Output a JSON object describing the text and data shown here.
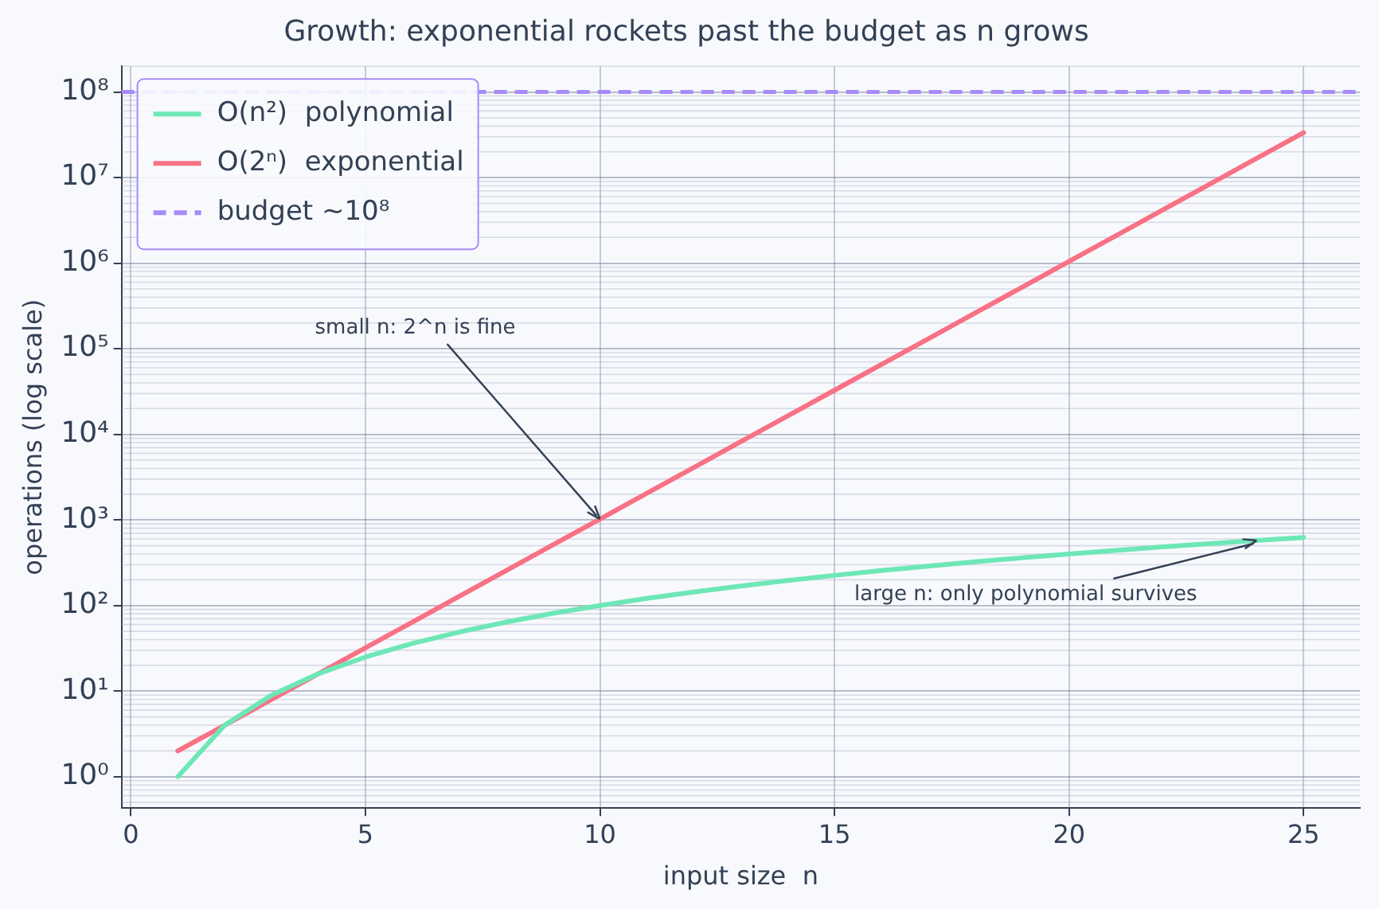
{
  "chart_data": {
    "type": "line",
    "title": "Growth: exponential rockets past the budget as n grows",
    "xlabel": "input size  n",
    "ylabel": "operations (log scale)",
    "x": [
      1,
      2,
      3,
      4,
      5,
      6,
      7,
      8,
      9,
      10,
      11,
      12,
      13,
      14,
      15,
      16,
      17,
      18,
      19,
      20,
      21,
      22,
      23,
      24,
      25
    ],
    "series": [
      {
        "name": "O(n²)  polynomial",
        "color": "#6ee7b7",
        "values": [
          1,
          4,
          9,
          16,
          25,
          36,
          49,
          64,
          81,
          100,
          121,
          144,
          169,
          196,
          225,
          256,
          289,
          324,
          361,
          400,
          441,
          484,
          529,
          576,
          625
        ]
      },
      {
        "name": "O(2ⁿ)  exponential",
        "color": "#f87185",
        "values": [
          2,
          4,
          8,
          16,
          32,
          64,
          128,
          256,
          512,
          1024,
          2048,
          4096,
          8192,
          16384,
          32768,
          65536,
          131072,
          262144,
          524288,
          1048576,
          2097152,
          4194304,
          8388608,
          16777216,
          33554432
        ]
      }
    ],
    "ref_lines": [
      {
        "axis": "y",
        "value": 100000000,
        "label": "budget ~10⁸",
        "color": "#a78bfa",
        "line_style": "dashed"
      }
    ],
    "annotations": [
      {
        "text": "small n: 2^n is fine",
        "x": 10,
        "y": 1024
      },
      {
        "text": "large n: only polynomial survives",
        "x": 24,
        "y": 576
      }
    ],
    "log": "y",
    "grid": true,
    "legend": "top left",
    "xlim": [
      -0.2,
      26.2
    ],
    "xticks": [
      0,
      5,
      10,
      15,
      20,
      25
    ],
    "ylim": [
      0.43,
      200000000
    ],
    "yticks": [
      {
        "value": 1,
        "label": "10⁰"
      },
      {
        "value": 10,
        "label": "10¹"
      },
      {
        "value": 100,
        "label": "10²"
      },
      {
        "value": 1000,
        "label": "10³"
      },
      {
        "value": 10000,
        "label": "10⁴"
      },
      {
        "value": 100000,
        "label": "10⁵"
      },
      {
        "value": 1000000,
        "label": "10⁶"
      },
      {
        "value": 10000000,
        "label": "10⁷"
      },
      {
        "value": 100000000,
        "label": "10⁸"
      }
    ]
  }
}
